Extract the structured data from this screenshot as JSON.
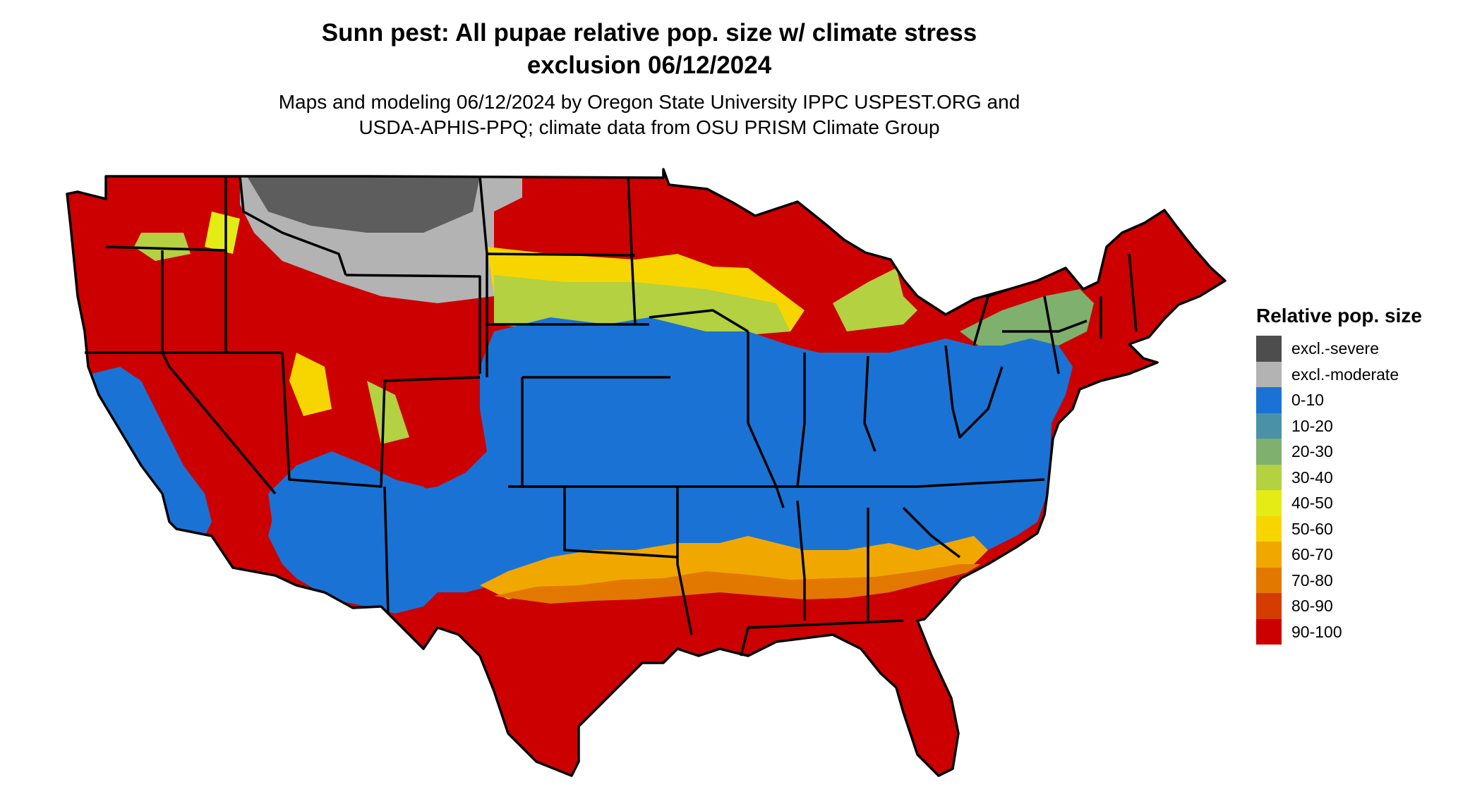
{
  "title_line1": "Sunn pest: All pupae relative pop. size w/ climate stress",
  "title_line2": "exclusion 06/12/2024",
  "subtitle_line1": "Maps and modeling 06/12/2024 by Oregon State University IPPC USPEST.ORG and",
  "subtitle_line2": "USDA-APHIS-PPQ; climate data from OSU PRISM Climate Group",
  "legend": {
    "title": "Relative pop. size",
    "items": [
      {
        "label": "excl.-severe",
        "color": "#4d4d4d"
      },
      {
        "label": "excl.-moderate",
        "color": "#b3b3b3"
      },
      {
        "label": "0-10",
        "color": "#1a73d4"
      },
      {
        "label": "10-20",
        "color": "#4a91a8"
      },
      {
        "label": "20-30",
        "color": "#7fb06e"
      },
      {
        "label": "30-40",
        "color": "#b3d141"
      },
      {
        "label": "40-50",
        "color": "#e3ec14"
      },
      {
        "label": "50-60",
        "color": "#f7d600"
      },
      {
        "label": "60-70",
        "color": "#f0a800"
      },
      {
        "label": "70-80",
        "color": "#e37800"
      },
      {
        "label": "80-90",
        "color": "#d43c00"
      },
      {
        "label": "90-100",
        "color": "#cc0000"
      }
    ]
  }
}
